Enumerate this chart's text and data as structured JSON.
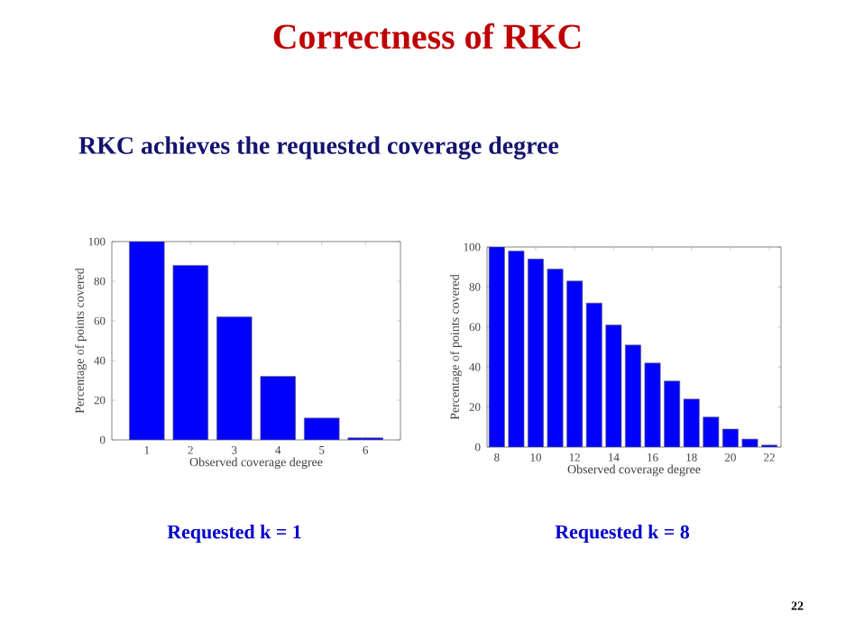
{
  "chart_data": [
    {
      "type": "bar",
      "title": "Correctness of RKC",
      "subtitle": "RKC achieves the requested coverage degree",
      "xlabel": "Observed coverage degree",
      "ylabel": "Percentage of points covered",
      "x": [
        1,
        2,
        3,
        4,
        5,
        6
      ],
      "values": [
        100,
        88,
        62,
        32,
        11,
        1
      ],
      "color": "#0000ff",
      "xlim": [
        0.2,
        6.8
      ],
      "xticks": [
        1,
        2,
        3,
        4,
        5,
        6
      ],
      "ylim": [
        0,
        100
      ],
      "yticks": [
        0,
        20,
        40,
        60,
        80,
        100
      ],
      "annotations": [
        "Requested k = 1"
      ]
    },
    {
      "type": "bar",
      "xlabel": "Observed coverage degree",
      "ylabel": "Percentage of points covered",
      "x": [
        8,
        9,
        10,
        11,
        12,
        13,
        14,
        15,
        16,
        17,
        18,
        19,
        20,
        21,
        22
      ],
      "values": [
        100,
        98,
        94,
        89,
        83,
        72,
        61,
        51,
        42,
        33,
        24,
        15,
        9,
        4,
        1
      ],
      "color": "#0000ff",
      "xlim": [
        7.5,
        22.6
      ],
      "xticks": [
        8,
        10,
        12,
        14,
        16,
        18,
        20,
        22
      ],
      "ylim": [
        0,
        100
      ],
      "yticks": [
        0,
        20,
        40,
        60,
        80,
        100
      ],
      "annotations": [
        "Requested k = 8",
        "22"
      ]
    }
  ]
}
